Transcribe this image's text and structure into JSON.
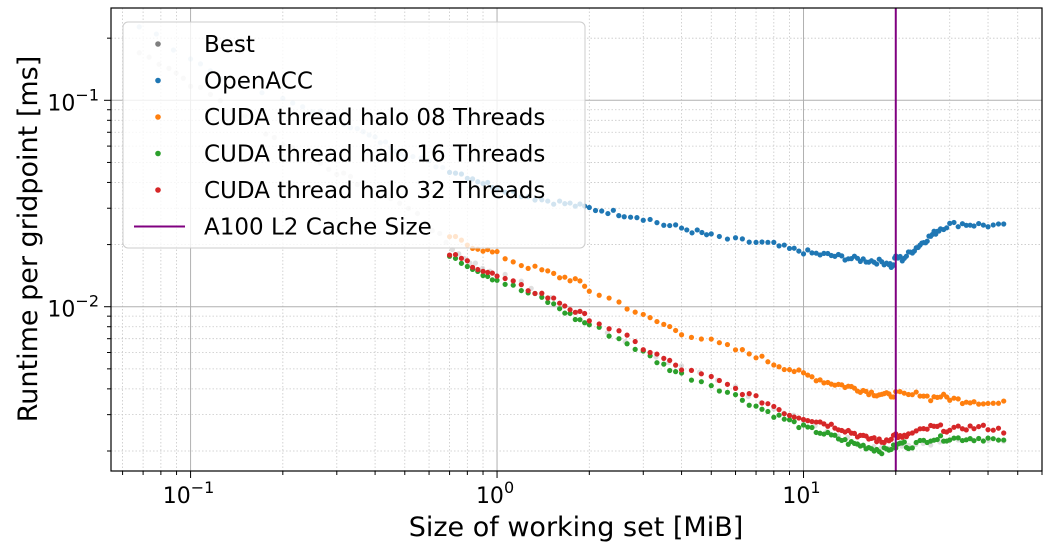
{
  "chart_data": {
    "type": "scatter",
    "title": "",
    "xlabel": "Size of working set [MiB]",
    "ylabel": "Runtime per gridpoint [ms]",
    "xscale": "log",
    "yscale": "log",
    "xlim": [
      0.055,
      60
    ],
    "ylim": [
      0.0016,
      0.28
    ],
    "x_ticks": [
      {
        "value": 0.1,
        "base": "10",
        "exp": "−1"
      },
      {
        "value": 1,
        "base": "10",
        "exp": "0"
      },
      {
        "value": 10,
        "base": "10",
        "exp": "1"
      }
    ],
    "y_ticks": [
      {
        "value": 0.01,
        "base": "10",
        "exp": "−2"
      },
      {
        "value": 0.1,
        "base": "10",
        "exp": "−1"
      }
    ],
    "grid": "major solid, minor dotted",
    "legend_position": "top-left",
    "series": [
      {
        "name": "Best",
        "color": "#7f7f7f",
        "points": [
          [
            0.068,
            0.17
          ],
          [
            0.085,
            0.145
          ],
          [
            0.1,
            0.12
          ],
          [
            0.125,
            0.1
          ],
          [
            0.165,
            0.075
          ],
          [
            0.2,
            0.062
          ],
          [
            0.25,
            0.052
          ],
          [
            0.3,
            0.045
          ],
          [
            0.35,
            0.04
          ],
          [
            0.45,
            0.034
          ],
          [
            0.55,
            0.028
          ],
          [
            0.65,
            0.022
          ],
          [
            0.75,
            0.018
          ],
          [
            0.85,
            0.016
          ],
          [
            1.0,
            0.0145
          ],
          [
            1.2,
            0.013
          ],
          [
            1.5,
            0.011
          ],
          [
            2.0,
            0.0085
          ],
          [
            3.0,
            0.0062
          ],
          [
            4.0,
            0.0052
          ],
          [
            6.0,
            0.004
          ],
          [
            8.0,
            0.0032
          ],
          [
            10.0,
            0.0028
          ],
          [
            13.0,
            0.0024
          ],
          [
            16.0,
            0.0021
          ],
          [
            19.0,
            0.002
          ],
          [
            22.0,
            0.0021
          ],
          [
            26.0,
            0.0022
          ],
          [
            32.0,
            0.0023
          ],
          [
            45.0,
            0.0022
          ]
        ]
      },
      {
        "name": "OpenACC",
        "color": "#1f77b4",
        "points": [
          [
            0.068,
            0.23
          ],
          [
            0.1,
            0.16
          ],
          [
            0.125,
            0.13
          ],
          [
            0.2,
            0.1
          ],
          [
            0.25,
            0.09
          ],
          [
            0.3,
            0.082
          ],
          [
            0.35,
            0.072
          ],
          [
            0.4,
            0.065
          ],
          [
            0.45,
            0.06
          ],
          [
            0.5,
            0.055
          ],
          [
            0.6,
            0.05
          ],
          [
            0.7,
            0.046
          ],
          [
            0.8,
            0.043
          ],
          [
            0.9,
            0.04
          ],
          [
            1.0,
            0.038
          ],
          [
            1.2,
            0.035
          ],
          [
            1.4,
            0.033
          ],
          [
            1.6,
            0.032
          ],
          [
            1.8,
            0.031
          ],
          [
            2.0,
            0.03
          ],
          [
            2.3,
            0.029
          ],
          [
            2.6,
            0.028
          ],
          [
            3.0,
            0.027
          ],
          [
            3.5,
            0.025
          ],
          [
            4.0,
            0.024
          ],
          [
            4.5,
            0.023
          ],
          [
            5.0,
            0.022
          ],
          [
            6.0,
            0.021
          ],
          [
            7.0,
            0.0205
          ],
          [
            8.0,
            0.02
          ],
          [
            9.0,
            0.019
          ],
          [
            10.0,
            0.0185
          ],
          [
            11.0,
            0.018
          ],
          [
            12.0,
            0.0178
          ],
          [
            13.0,
            0.0175
          ],
          [
            14.0,
            0.0172
          ],
          [
            15.0,
            0.017
          ],
          [
            16.0,
            0.0168
          ],
          [
            17.0,
            0.0166
          ],
          [
            18.0,
            0.0165
          ],
          [
            19.0,
            0.0163
          ],
          [
            19.5,
            0.0155
          ],
          [
            20.0,
            0.0175
          ],
          [
            21.0,
            0.017
          ],
          [
            22.0,
            0.018
          ],
          [
            23.0,
            0.019
          ],
          [
            24.0,
            0.02
          ],
          [
            25.0,
            0.021
          ],
          [
            26.0,
            0.022
          ],
          [
            27.0,
            0.023
          ],
          [
            28.0,
            0.024
          ],
          [
            30.0,
            0.025
          ],
          [
            33.0,
            0.0252
          ],
          [
            36.0,
            0.025
          ],
          [
            40.0,
            0.0248
          ],
          [
            45.0,
            0.0245
          ]
        ]
      },
      {
        "name": "CUDA thread halo 08 Threads",
        "color": "#ff7f0e",
        "points": [
          [
            0.7,
            0.022
          ],
          [
            0.8,
            0.02
          ],
          [
            0.9,
            0.019
          ],
          [
            1.0,
            0.018
          ],
          [
            1.2,
            0.016
          ],
          [
            1.4,
            0.015
          ],
          [
            1.6,
            0.014
          ],
          [
            1.8,
            0.0135
          ],
          [
            2.0,
            0.012
          ],
          [
            2.5,
            0.0105
          ],
          [
            3.0,
            0.009
          ],
          [
            3.5,
            0.0082
          ],
          [
            4.0,
            0.0075
          ],
          [
            5.0,
            0.0068
          ],
          [
            6.0,
            0.0062
          ],
          [
            7.0,
            0.0058
          ],
          [
            8.0,
            0.0053
          ],
          [
            9.0,
            0.005
          ],
          [
            10.0,
            0.0047
          ],
          [
            11.0,
            0.0045
          ],
          [
            12.0,
            0.0043
          ],
          [
            13.0,
            0.0042
          ],
          [
            14.0,
            0.0041
          ],
          [
            15.0,
            0.004
          ],
          [
            16.0,
            0.0039
          ],
          [
            17.0,
            0.0038
          ],
          [
            18.0,
            0.00378
          ],
          [
            19.0,
            0.0037
          ],
          [
            20.0,
            0.0038
          ],
          [
            22.0,
            0.0037
          ],
          [
            24.0,
            0.0038
          ],
          [
            26.0,
            0.0036
          ],
          [
            28.0,
            0.0037
          ],
          [
            30.0,
            0.0036
          ],
          [
            33.0,
            0.0035
          ],
          [
            36.0,
            0.0035
          ],
          [
            40.0,
            0.0034
          ],
          [
            45.0,
            0.0034
          ]
        ]
      },
      {
        "name": "CUDA thread halo 16 Threads",
        "color": "#2ca02c",
        "points": [
          [
            0.7,
            0.018
          ],
          [
            0.8,
            0.016
          ],
          [
            0.9,
            0.0145
          ],
          [
            1.0,
            0.0135
          ],
          [
            1.2,
            0.012
          ],
          [
            1.4,
            0.011
          ],
          [
            1.6,
            0.0098
          ],
          [
            1.8,
            0.0088
          ],
          [
            2.0,
            0.0082
          ],
          [
            2.5,
            0.007
          ],
          [
            3.0,
            0.006
          ],
          [
            3.5,
            0.0052
          ],
          [
            4.0,
            0.0047
          ],
          [
            5.0,
            0.0042
          ],
          [
            6.0,
            0.0037
          ],
          [
            7.0,
            0.0033
          ],
          [
            8.0,
            0.003
          ],
          [
            9.0,
            0.0028
          ],
          [
            10.0,
            0.0026
          ],
          [
            11.0,
            0.0025
          ],
          [
            12.0,
            0.0024
          ],
          [
            13.0,
            0.0023
          ],
          [
            14.0,
            0.0022
          ],
          [
            15.0,
            0.00215
          ],
          [
            16.0,
            0.0021
          ],
          [
            17.0,
            0.00205
          ],
          [
            18.0,
            0.002
          ],
          [
            19.0,
            0.00205
          ],
          [
            20.0,
            0.0021
          ],
          [
            21.0,
            0.0022
          ],
          [
            22.0,
            0.0021
          ],
          [
            24.0,
            0.0022
          ],
          [
            26.0,
            0.0023
          ],
          [
            28.0,
            0.0023
          ],
          [
            30.0,
            0.0023
          ],
          [
            33.0,
            0.0023
          ],
          [
            36.0,
            0.0023
          ],
          [
            40.0,
            0.0023
          ],
          [
            45.0,
            0.0022
          ]
        ]
      },
      {
        "name": "CUDA thread halo 32 Threads",
        "color": "#d62728",
        "points": [
          [
            0.7,
            0.018
          ],
          [
            0.8,
            0.0165
          ],
          [
            0.9,
            0.015
          ],
          [
            1.0,
            0.014
          ],
          [
            1.2,
            0.0125
          ],
          [
            1.4,
            0.0115
          ],
          [
            1.6,
            0.0105
          ],
          [
            1.8,
            0.0095
          ],
          [
            2.0,
            0.0088
          ],
          [
            2.5,
            0.0075
          ],
          [
            3.0,
            0.0063
          ],
          [
            3.5,
            0.0056
          ],
          [
            4.0,
            0.005
          ],
          [
            5.0,
            0.0045
          ],
          [
            6.0,
            0.004
          ],
          [
            7.0,
            0.0036
          ],
          [
            8.0,
            0.0033
          ],
          [
            9.0,
            0.003
          ],
          [
            10.0,
            0.0029
          ],
          [
            11.0,
            0.0028
          ],
          [
            12.0,
            0.0027
          ],
          [
            13.0,
            0.0026
          ],
          [
            14.0,
            0.0025
          ],
          [
            15.0,
            0.0024
          ],
          [
            16.0,
            0.0023
          ],
          [
            17.0,
            0.0023
          ],
          [
            18.0,
            0.0022
          ],
          [
            19.0,
            0.0023
          ],
          [
            20.0,
            0.0024
          ],
          [
            21.0,
            0.0023
          ],
          [
            22.0,
            0.0024
          ],
          [
            24.0,
            0.0025
          ],
          [
            26.0,
            0.0026
          ],
          [
            28.0,
            0.0026
          ],
          [
            30.0,
            0.0025
          ],
          [
            33.0,
            0.0026
          ],
          [
            36.0,
            0.0026
          ],
          [
            40.0,
            0.0026
          ],
          [
            45.0,
            0.0025
          ]
        ]
      }
    ],
    "vline": {
      "name": "A100 L2 Cache Size",
      "x": 20,
      "color": "#800080"
    }
  }
}
